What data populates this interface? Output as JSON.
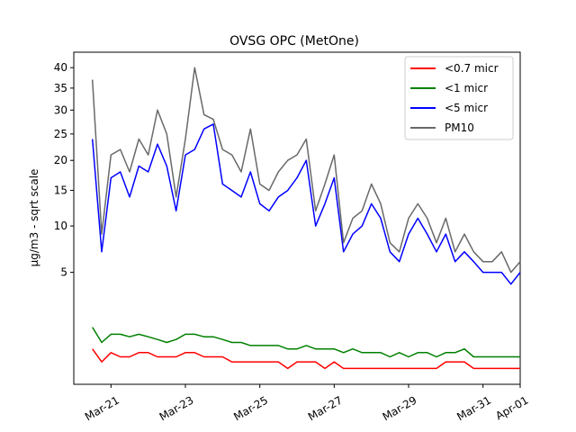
{
  "chart_data": {
    "type": "line",
    "title": "OVSG OPC (MetOne)",
    "xlabel": "",
    "ylabel": "μg/m3 - sqrt scale",
    "y_scale": "sqrt",
    "xlim": [
      "2021-03-20T00:00",
      "2021-04-01T00:00"
    ],
    "ylim": [
      0,
      44
    ],
    "x_ticks": [
      {
        "value": "2021-03-21",
        "label": "Mar-21"
      },
      {
        "value": "2021-03-23",
        "label": "Mar-23"
      },
      {
        "value": "2021-03-25",
        "label": "Mar-25"
      },
      {
        "value": "2021-03-27",
        "label": "Mar-27"
      },
      {
        "value": "2021-03-29",
        "label": "Mar-29"
      },
      {
        "value": "2021-03-31",
        "label": "Mar-31"
      },
      {
        "value": "2021-04-01",
        "label": "Apr-01"
      }
    ],
    "y_ticks": [
      5,
      10,
      15,
      20,
      25,
      30,
      35,
      40
    ],
    "grid": false,
    "legend": "top-right",
    "x": [
      "2021-03-20T12:00",
      "2021-03-20T18:00",
      "2021-03-21T00:00",
      "2021-03-21T06:00",
      "2021-03-21T12:00",
      "2021-03-21T18:00",
      "2021-03-22T00:00",
      "2021-03-22T06:00",
      "2021-03-22T12:00",
      "2021-03-22T18:00",
      "2021-03-23T00:00",
      "2021-03-23T06:00",
      "2021-03-23T12:00",
      "2021-03-23T18:00",
      "2021-03-24T00:00",
      "2021-03-24T06:00",
      "2021-03-24T12:00",
      "2021-03-24T18:00",
      "2021-03-25T00:00",
      "2021-03-25T06:00",
      "2021-03-25T12:00",
      "2021-03-25T18:00",
      "2021-03-26T00:00",
      "2021-03-26T06:00",
      "2021-03-26T12:00",
      "2021-03-26T18:00",
      "2021-03-27T00:00",
      "2021-03-27T06:00",
      "2021-03-27T12:00",
      "2021-03-27T18:00",
      "2021-03-28T00:00",
      "2021-03-28T06:00",
      "2021-03-28T12:00",
      "2021-03-28T18:00",
      "2021-03-29T00:00",
      "2021-03-29T06:00",
      "2021-03-29T12:00",
      "2021-03-29T18:00",
      "2021-03-30T00:00",
      "2021-03-30T06:00",
      "2021-03-30T12:00",
      "2021-03-30T18:00",
      "2021-03-31T00:00",
      "2021-03-31T06:00",
      "2021-03-31T12:00",
      "2021-03-31T18:00",
      "2021-04-01T00:00"
    ],
    "series": [
      {
        "name": "<0.7 micr",
        "color": "#ff0000",
        "values": [
          0.5,
          0.2,
          0.4,
          0.3,
          0.3,
          0.4,
          0.4,
          0.3,
          0.3,
          0.3,
          0.4,
          0.4,
          0.3,
          0.3,
          0.3,
          0.2,
          0.2,
          0.2,
          0.2,
          0.2,
          0.2,
          0.1,
          0.2,
          0.2,
          0.2,
          0.1,
          0.2,
          0.1,
          0.1,
          0.1,
          0.1,
          0.1,
          0.1,
          0.1,
          0.1,
          0.1,
          0.1,
          0.1,
          0.2,
          0.2,
          0.2,
          0.1,
          0.1,
          0.1,
          0.1,
          0.1,
          0.1
        ]
      },
      {
        "name": "<1 micr",
        "color": "#008000",
        "values": [
          1.3,
          0.7,
          1.0,
          1.0,
          0.9,
          1.0,
          0.9,
          0.8,
          0.7,
          0.8,
          1.0,
          1.0,
          0.9,
          0.9,
          0.8,
          0.7,
          0.7,
          0.6,
          0.6,
          0.6,
          0.6,
          0.5,
          0.5,
          0.6,
          0.5,
          0.5,
          0.5,
          0.4,
          0.5,
          0.4,
          0.4,
          0.4,
          0.3,
          0.4,
          0.3,
          0.4,
          0.4,
          0.3,
          0.4,
          0.4,
          0.5,
          0.3,
          0.3,
          0.3,
          0.3,
          0.3,
          0.3
        ]
      },
      {
        "name": "<5 micr",
        "color": "#0000ff",
        "values": [
          24,
          7,
          17,
          18,
          14,
          19,
          18,
          23,
          19,
          12,
          21,
          22,
          26,
          27,
          16,
          15,
          14,
          18,
          13,
          12,
          14,
          15,
          17,
          20,
          10,
          13,
          17,
          7,
          9,
          10,
          13,
          11,
          7,
          6,
          9,
          11,
          9,
          7,
          9,
          6,
          7,
          6,
          5,
          5,
          5,
          4,
          5
        ]
      },
      {
        "name": "PM10",
        "color": "#696969",
        "values": [
          37,
          9,
          21,
          22,
          18,
          24,
          21,
          30,
          25,
          14,
          24,
          40,
          29,
          28,
          22,
          21,
          18,
          26,
          16,
          15,
          18,
          20,
          21,
          24,
          12,
          16,
          21,
          8,
          11,
          12,
          16,
          13,
          8,
          7,
          11,
          13,
          11,
          8,
          11,
          7,
          9,
          7,
          6,
          6,
          7,
          5,
          6
        ]
      }
    ]
  }
}
